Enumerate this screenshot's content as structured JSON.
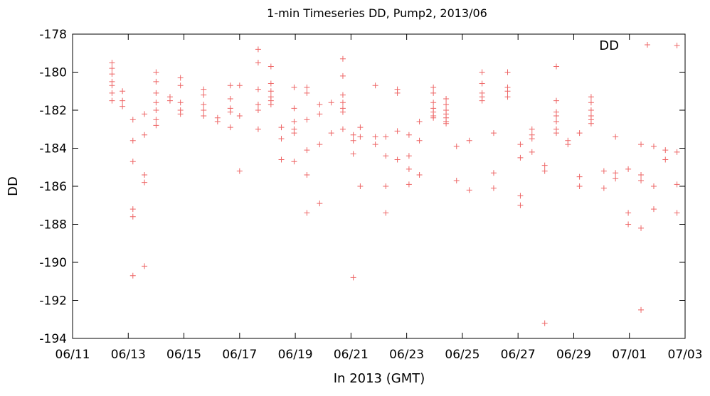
{
  "chart_data": {
    "type": "scatter",
    "title": "1-min Timeseries DD, Pump2, 2013/06",
    "xlabel": "In 2013 (GMT)",
    "ylabel": "DD",
    "legend": {
      "entries": [
        "DD"
      ],
      "placement": "top-right"
    },
    "grid": false,
    "marker": "+",
    "xlim": [
      "2013-06-11",
      "2013-07-03"
    ],
    "ylim": [
      -194,
      -178
    ],
    "x_ticks": [
      "06/11",
      "06/13",
      "06/15",
      "06/17",
      "06/19",
      "06/21",
      "06/23",
      "06/25",
      "06/27",
      "06/29",
      "07/01",
      "07/03"
    ],
    "y_ticks": [
      "-178",
      "-180",
      "-182",
      "-184",
      "-186",
      "-188",
      "-190",
      "-192",
      "-194"
    ],
    "series": [
      {
        "name": "DD",
        "color": "#ee6666",
        "points": [
          [
            "2013-06-12T10:00",
            -179.5
          ],
          [
            "2013-06-12T10:00",
            -179.8
          ],
          [
            "2013-06-12T10:00",
            -180.1
          ],
          [
            "2013-06-12T10:00",
            -180.5
          ],
          [
            "2013-06-12T10:00",
            -180.7
          ],
          [
            "2013-06-12T10:00",
            -181.1
          ],
          [
            "2013-06-12T10:00",
            -181.5
          ],
          [
            "2013-06-12T19:00",
            -181.0
          ],
          [
            "2013-06-12T19:00",
            -181.5
          ],
          [
            "2013-06-12T19:00",
            -181.8
          ],
          [
            "2013-06-13T04:00",
            -182.5
          ],
          [
            "2013-06-13T04:00",
            -183.6
          ],
          [
            "2013-06-13T04:00",
            -184.7
          ],
          [
            "2013-06-13T04:00",
            -187.2
          ],
          [
            "2013-06-13T04:00",
            -187.6
          ],
          [
            "2013-06-13T04:00",
            -190.7
          ],
          [
            "2013-06-13T14:00",
            -182.2
          ],
          [
            "2013-06-13T14:00",
            -183.3
          ],
          [
            "2013-06-13T14:00",
            -185.4
          ],
          [
            "2013-06-13T14:00",
            -185.8
          ],
          [
            "2013-06-13T14:00",
            -190.2
          ],
          [
            "2013-06-14T00:00",
            -180.0
          ],
          [
            "2013-06-14T00:00",
            -180.5
          ],
          [
            "2013-06-14T00:00",
            -181.1
          ],
          [
            "2013-06-14T00:00",
            -181.6
          ],
          [
            "2013-06-14T00:00",
            -182.0
          ],
          [
            "2013-06-14T00:00",
            -182.5
          ],
          [
            "2013-06-14T00:00",
            -182.8
          ],
          [
            "2013-06-14T12:00",
            -181.3
          ],
          [
            "2013-06-14T12:00",
            -181.5
          ],
          [
            "2013-06-14T21:00",
            -180.3
          ],
          [
            "2013-06-14T21:00",
            -180.7
          ],
          [
            "2013-06-14T21:00",
            -181.6
          ],
          [
            "2013-06-14T21:00",
            -182.0
          ],
          [
            "2013-06-14T21:00",
            -182.2
          ],
          [
            "2013-06-15T17:00",
            -180.9
          ],
          [
            "2013-06-15T17:00",
            -181.2
          ],
          [
            "2013-06-15T17:00",
            -181.7
          ],
          [
            "2013-06-15T17:00",
            -182.0
          ],
          [
            "2013-06-15T17:00",
            -182.3
          ],
          [
            "2013-06-16T05:00",
            -182.4
          ],
          [
            "2013-06-16T05:00",
            -182.6
          ],
          [
            "2013-06-16T16:00",
            -180.7
          ],
          [
            "2013-06-16T16:00",
            -181.4
          ],
          [
            "2013-06-16T16:00",
            -181.9
          ],
          [
            "2013-06-16T16:00",
            -182.1
          ],
          [
            "2013-06-16T16:00",
            -182.9
          ],
          [
            "2013-06-17T00:00",
            -180.7
          ],
          [
            "2013-06-17T00:00",
            -182.3
          ],
          [
            "2013-06-17T00:00",
            -185.2
          ],
          [
            "2013-06-17T16:00",
            -178.8
          ],
          [
            "2013-06-17T16:00",
            -179.5
          ],
          [
            "2013-06-17T16:00",
            -180.9
          ],
          [
            "2013-06-17T16:00",
            -181.7
          ],
          [
            "2013-06-17T16:00",
            -182.0
          ],
          [
            "2013-06-17T16:00",
            -183.0
          ],
          [
            "2013-06-18T03:00",
            -179.7
          ],
          [
            "2013-06-18T03:00",
            -180.6
          ],
          [
            "2013-06-18T03:00",
            -181.0
          ],
          [
            "2013-06-18T03:00",
            -181.3
          ],
          [
            "2013-06-18T03:00",
            -181.5
          ],
          [
            "2013-06-18T03:00",
            -181.7
          ],
          [
            "2013-06-18T12:00",
            -182.9
          ],
          [
            "2013-06-18T12:00",
            -183.5
          ],
          [
            "2013-06-18T12:00",
            -184.6
          ],
          [
            "2013-06-18T23:00",
            -180.8
          ],
          [
            "2013-06-18T23:00",
            -181.9
          ],
          [
            "2013-06-18T23:00",
            -182.6
          ],
          [
            "2013-06-18T23:00",
            -183.0
          ],
          [
            "2013-06-18T23:00",
            -183.2
          ],
          [
            "2013-06-18T23:00",
            -184.7
          ],
          [
            "2013-06-19T10:00",
            -180.8
          ],
          [
            "2013-06-19T10:00",
            -181.1
          ],
          [
            "2013-06-19T10:00",
            -182.5
          ],
          [
            "2013-06-19T10:00",
            -184.1
          ],
          [
            "2013-06-19T10:00",
            -185.4
          ],
          [
            "2013-06-19T10:00",
            -187.4
          ],
          [
            "2013-06-19T21:00",
            -181.7
          ],
          [
            "2013-06-19T21:00",
            -182.2
          ],
          [
            "2013-06-19T21:00",
            -183.8
          ],
          [
            "2013-06-19T21:00",
            -186.9
          ],
          [
            "2013-06-20T07:00",
            -181.6
          ],
          [
            "2013-06-20T07:00",
            -183.2
          ],
          [
            "2013-06-20T17:00",
            -179.3
          ],
          [
            "2013-06-20T17:00",
            -180.2
          ],
          [
            "2013-06-20T17:00",
            -181.2
          ],
          [
            "2013-06-20T17:00",
            -181.6
          ],
          [
            "2013-06-20T17:00",
            -181.9
          ],
          [
            "2013-06-20T17:00",
            -182.1
          ],
          [
            "2013-06-20T17:00",
            -183.0
          ],
          [
            "2013-06-21T02:00",
            -183.3
          ],
          [
            "2013-06-21T02:00",
            -183.6
          ],
          [
            "2013-06-21T02:00",
            -184.3
          ],
          [
            "2013-06-21T02:00",
            -190.8
          ],
          [
            "2013-06-21T08:00",
            -182.9
          ],
          [
            "2013-06-21T08:00",
            -183.4
          ],
          [
            "2013-06-21T08:00",
            -186.0
          ],
          [
            "2013-06-21T21:00",
            -180.7
          ],
          [
            "2013-06-21T21:00",
            -183.4
          ],
          [
            "2013-06-21T21:00",
            -183.8
          ],
          [
            "2013-06-22T06:00",
            -183.4
          ],
          [
            "2013-06-22T06:00",
            -184.4
          ],
          [
            "2013-06-22T06:00",
            -186.0
          ],
          [
            "2013-06-22T06:00",
            -187.4
          ],
          [
            "2013-06-22T16:00",
            -180.9
          ],
          [
            "2013-06-22T16:00",
            -181.1
          ],
          [
            "2013-06-22T16:00",
            -183.1
          ],
          [
            "2013-06-22T16:00",
            -184.6
          ],
          [
            "2013-06-23T02:00",
            -183.3
          ],
          [
            "2013-06-23T02:00",
            -184.4
          ],
          [
            "2013-06-23T02:00",
            -185.1
          ],
          [
            "2013-06-23T02:00",
            -185.9
          ],
          [
            "2013-06-23T11:00",
            -182.6
          ],
          [
            "2013-06-23T11:00",
            -183.6
          ],
          [
            "2013-06-23T11:00",
            -185.4
          ],
          [
            "2013-06-23T23:00",
            -180.8
          ],
          [
            "2013-06-23T23:00",
            -181.1
          ],
          [
            "2013-06-23T23:00",
            -181.6
          ],
          [
            "2013-06-23T23:00",
            -181.9
          ],
          [
            "2013-06-23T23:00",
            -182.1
          ],
          [
            "2013-06-23T23:00",
            -182.3
          ],
          [
            "2013-06-23T23:00",
            -182.4
          ],
          [
            "2013-06-24T10:00",
            -181.4
          ],
          [
            "2013-06-24T10:00",
            -181.7
          ],
          [
            "2013-06-24T10:00",
            -182.0
          ],
          [
            "2013-06-24T10:00",
            -182.2
          ],
          [
            "2013-06-24T10:00",
            -182.4
          ],
          [
            "2013-06-24T10:00",
            -182.6
          ],
          [
            "2013-06-24T10:00",
            -182.7
          ],
          [
            "2013-06-24T19:00",
            -183.9
          ],
          [
            "2013-06-24T19:00",
            -185.7
          ],
          [
            "2013-06-25T06:00",
            -183.6
          ],
          [
            "2013-06-25T06:00",
            -186.2
          ],
          [
            "2013-06-25T17:00",
            -180.0
          ],
          [
            "2013-06-25T17:00",
            -180.6
          ],
          [
            "2013-06-25T17:00",
            -181.1
          ],
          [
            "2013-06-25T17:00",
            -181.3
          ],
          [
            "2013-06-25T17:00",
            -181.5
          ],
          [
            "2013-06-26T03:00",
            -183.2
          ],
          [
            "2013-06-26T03:00",
            -185.3
          ],
          [
            "2013-06-26T03:00",
            -186.1
          ],
          [
            "2013-06-26T15:00",
            -180.0
          ],
          [
            "2013-06-26T15:00",
            -180.8
          ],
          [
            "2013-06-26T15:00",
            -181.0
          ],
          [
            "2013-06-26T15:00",
            -181.3
          ],
          [
            "2013-06-27T02:00",
            -183.8
          ],
          [
            "2013-06-27T02:00",
            -184.5
          ],
          [
            "2013-06-27T02:00",
            -186.5
          ],
          [
            "2013-06-27T02:00",
            -187.0
          ],
          [
            "2013-06-27T12:00",
            -183.0
          ],
          [
            "2013-06-27T12:00",
            -183.3
          ],
          [
            "2013-06-27T12:00",
            -183.5
          ],
          [
            "2013-06-27T12:00",
            -184.2
          ],
          [
            "2013-06-27T23:00",
            -184.9
          ],
          [
            "2013-06-27T23:00",
            -185.2
          ],
          [
            "2013-06-27T23:00",
            -193.2
          ],
          [
            "2013-06-28T09:00",
            -179.7
          ],
          [
            "2013-06-28T09:00",
            -181.5
          ],
          [
            "2013-06-28T09:00",
            -182.1
          ],
          [
            "2013-06-28T09:00",
            -182.3
          ],
          [
            "2013-06-28T09:00",
            -182.6
          ],
          [
            "2013-06-28T09:00",
            -183.0
          ],
          [
            "2013-06-28T09:00",
            -183.2
          ],
          [
            "2013-06-28T19:00",
            -183.6
          ],
          [
            "2013-06-28T19:00",
            -183.8
          ],
          [
            "2013-06-29T05:00",
            -183.2
          ],
          [
            "2013-06-29T05:00",
            -185.5
          ],
          [
            "2013-06-29T05:00",
            -186.0
          ],
          [
            "2013-06-29T15:00",
            -181.3
          ],
          [
            "2013-06-29T15:00",
            -181.6
          ],
          [
            "2013-06-29T15:00",
            -182.0
          ],
          [
            "2013-06-29T15:00",
            -182.3
          ],
          [
            "2013-06-29T15:00",
            -182.5
          ],
          [
            "2013-06-29T15:00",
            -182.7
          ],
          [
            "2013-06-30T02:00",
            -185.2
          ],
          [
            "2013-06-30T02:00",
            -186.1
          ],
          [
            "2013-06-30T12:00",
            -183.4
          ],
          [
            "2013-06-30T12:00",
            -185.3
          ],
          [
            "2013-06-30T12:00",
            -185.6
          ],
          [
            "2013-06-30T23:00",
            -185.1
          ],
          [
            "2013-06-30T23:00",
            -187.4
          ],
          [
            "2013-06-30T23:00",
            -188.0
          ],
          [
            "2013-07-01T10:00",
            -183.8
          ],
          [
            "2013-07-01T10:00",
            -185.4
          ],
          [
            "2013-07-01T10:00",
            -185.7
          ],
          [
            "2013-07-01T10:00",
            -188.2
          ],
          [
            "2013-07-01T10:00",
            -192.5
          ],
          [
            "2013-07-01T21:00",
            -183.9
          ],
          [
            "2013-07-01T21:00",
            -186.0
          ],
          [
            "2013-07-01T21:00",
            -187.2
          ],
          [
            "2013-07-02T07:00",
            -184.1
          ],
          [
            "2013-07-02T07:00",
            -184.6
          ],
          [
            "2013-07-02T17:00",
            -178.6
          ],
          [
            "2013-07-02T17:00",
            -184.2
          ],
          [
            "2013-07-02T17:00",
            -185.9
          ],
          [
            "2013-07-02T17:00",
            -187.4
          ]
        ]
      }
    ]
  }
}
